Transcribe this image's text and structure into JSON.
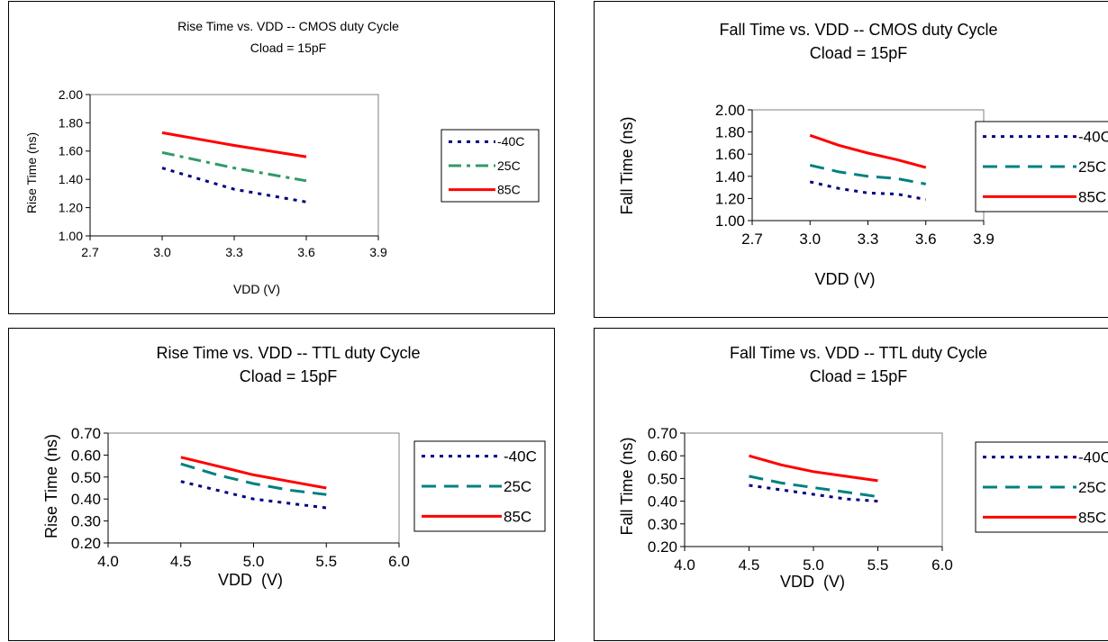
{
  "chart_data": [
    {
      "type": "line",
      "title": "Rise Time vs. VDD -- CMOS duty Cycle",
      "subtitle": "Cload = 15pF",
      "xlabel": "VDD (V)",
      "ylabel": "Rise Time (ns)",
      "xlim": [
        2.7,
        3.9
      ],
      "ylim": [
        1.0,
        2.0
      ],
      "xticks": [
        "2.7",
        "3.0",
        "3.3",
        "3.6",
        "3.9"
      ],
      "yticks": [
        "1.00",
        "1.20",
        "1.40",
        "1.60",
        "1.80",
        "2.00"
      ],
      "grid": false,
      "legend_position": "right",
      "series": [
        {
          "name": "-40C",
          "color": "#000080",
          "dash": "dot",
          "x": [
            3.0,
            3.3,
            3.6
          ],
          "values": [
            1.48,
            1.33,
            1.24
          ]
        },
        {
          "name": "25C",
          "color": "#339966",
          "dash": "dashdot",
          "x": [
            3.0,
            3.3,
            3.6
          ],
          "values": [
            1.59,
            1.48,
            1.39
          ]
        },
        {
          "name": "85C",
          "color": "#ff0000",
          "dash": "solid",
          "x": [
            3.0,
            3.3,
            3.6
          ],
          "values": [
            1.73,
            1.64,
            1.56
          ]
        }
      ]
    },
    {
      "type": "line",
      "title": "Fall Time vs. VDD -- CMOS duty Cycle",
      "subtitle": "Cload = 15pF",
      "xlabel": "VDD (V)",
      "ylabel": "Fall Time (ns)",
      "xlim": [
        2.7,
        3.9
      ],
      "ylim": [
        1.0,
        2.0
      ],
      "xticks": [
        "2.7",
        "3.0",
        "3.3",
        "3.6",
        "3.9"
      ],
      "yticks": [
        "1.00",
        "1.20",
        "1.40",
        "1.60",
        "1.80",
        "2.00"
      ],
      "grid": false,
      "legend_position": "right",
      "series": [
        {
          "name": "-40C",
          "color": "#000080",
          "dash": "dot",
          "x": [
            3.0,
            3.15,
            3.3,
            3.45,
            3.6
          ],
          "values": [
            1.35,
            1.29,
            1.25,
            1.24,
            1.19
          ]
        },
        {
          "name": "25C",
          "color": "#008080",
          "dash": "dash",
          "x": [
            3.0,
            3.15,
            3.3,
            3.45,
            3.6
          ],
          "values": [
            1.5,
            1.44,
            1.4,
            1.38,
            1.33
          ]
        },
        {
          "name": "85C",
          "color": "#ff0000",
          "dash": "solid",
          "x": [
            3.0,
            3.15,
            3.3,
            3.45,
            3.6
          ],
          "values": [
            1.77,
            1.68,
            1.61,
            1.55,
            1.48
          ]
        }
      ]
    },
    {
      "type": "line",
      "title": "Rise Time vs. VDD -- TTL duty Cycle",
      "subtitle": "Cload = 15pF",
      "xlabel": "VDD  (V)",
      "ylabel": "Rise Time (ns)",
      "xlim": [
        4.0,
        6.0
      ],
      "ylim": [
        0.2,
        0.7
      ],
      "xticks": [
        "4.0",
        "4.5",
        "5.0",
        "5.5",
        "6.0"
      ],
      "yticks": [
        "0.20",
        "0.30",
        "0.40",
        "0.50",
        "0.60",
        "0.70"
      ],
      "grid": false,
      "legend_position": "right",
      "series": [
        {
          "name": "-40C",
          "color": "#000080",
          "dash": "dot",
          "x": [
            4.5,
            4.75,
            5.0,
            5.25,
            5.5
          ],
          "values": [
            0.48,
            0.44,
            0.4,
            0.38,
            0.36
          ]
        },
        {
          "name": "25C",
          "color": "#008080",
          "dash": "dash",
          "x": [
            4.5,
            4.75,
            5.0,
            5.25,
            5.5
          ],
          "values": [
            0.56,
            0.51,
            0.47,
            0.44,
            0.42
          ]
        },
        {
          "name": "85C",
          "color": "#ff0000",
          "dash": "solid",
          "x": [
            4.5,
            4.75,
            5.0,
            5.25,
            5.5
          ],
          "values": [
            0.59,
            0.55,
            0.51,
            0.48,
            0.45
          ]
        }
      ]
    },
    {
      "type": "line",
      "title": "Fall Time vs. VDD -- TTL duty Cycle",
      "subtitle": "Cload = 15pF",
      "xlabel": "VDD  (V)",
      "ylabel": "Fall Time (ns)",
      "xlim": [
        4.0,
        6.0
      ],
      "ylim": [
        0.2,
        0.7
      ],
      "xticks": [
        "4.0",
        "4.5",
        "5.0",
        "5.5",
        "6.0"
      ],
      "yticks": [
        "0.20",
        "0.30",
        "0.40",
        "0.50",
        "0.60",
        "0.70"
      ],
      "grid": false,
      "legend_position": "right",
      "series": [
        {
          "name": "-40C",
          "color": "#000080",
          "dash": "dot",
          "x": [
            4.5,
            4.75,
            5.0,
            5.25,
            5.5
          ],
          "values": [
            0.47,
            0.45,
            0.43,
            0.41,
            0.4
          ]
        },
        {
          "name": "25C",
          "color": "#008080",
          "dash": "dash",
          "x": [
            4.5,
            4.75,
            5.0,
            5.25,
            5.5
          ],
          "values": [
            0.51,
            0.48,
            0.46,
            0.44,
            0.42
          ]
        },
        {
          "name": "85C",
          "color": "#ff0000",
          "dash": "solid",
          "x": [
            4.5,
            4.75,
            5.0,
            5.25,
            5.5
          ],
          "values": [
            0.6,
            0.56,
            0.53,
            0.51,
            0.49
          ]
        }
      ]
    }
  ]
}
